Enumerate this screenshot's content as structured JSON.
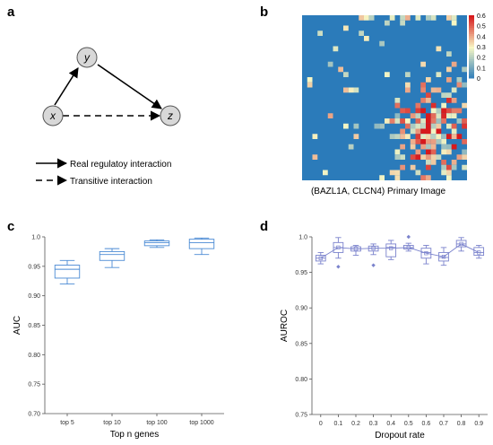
{
  "panels": {
    "a": {
      "letter": "a",
      "nodes": {
        "x": "x",
        "y": "y",
        "z": "z"
      },
      "legend": {
        "solid": "Real regulatoy interaction",
        "dashed": "Transitive interaction"
      }
    },
    "b": {
      "letter": "b",
      "caption": "(BAZL1A, CLCN4) Primary Image",
      "colorbar": {
        "ticks": [
          "0.6",
          "0.5",
          "0.4",
          "0.3",
          "0.2",
          "0.1",
          "0"
        ]
      }
    },
    "c": {
      "letter": "c"
    },
    "d": {
      "letter": "d"
    }
  },
  "chart_data": [
    {
      "type": "box",
      "panel": "c",
      "xlabel": "Top n genes",
      "ylabel": "AUC",
      "ylim": [
        0.7,
        1.0
      ],
      "yticks": [
        "0.70",
        "0.75",
        "0.80",
        "0.85",
        "0.90",
        "0.95",
        "1.0"
      ],
      "categories": [
        "top 5",
        "top 10",
        "top 100",
        "top 1000"
      ],
      "boxes": [
        {
          "min": 0.92,
          "q1": 0.93,
          "median": 0.945,
          "q3": 0.952,
          "max": 0.96
        },
        {
          "min": 0.948,
          "q1": 0.96,
          "median": 0.97,
          "q3": 0.975,
          "max": 0.98
        },
        {
          "min": 0.982,
          "q1": 0.985,
          "median": 0.99,
          "q3": 0.993,
          "max": 0.995
        },
        {
          "min": 0.97,
          "q1": 0.98,
          "median": 0.99,
          "q3": 0.996,
          "max": 0.998
        }
      ],
      "color": "#4a8ad4"
    },
    {
      "type": "box",
      "panel": "d",
      "xlabel": "Dropout rate",
      "ylabel": "AUROC",
      "ylim": [
        0.75,
        1.0
      ],
      "yticks": [
        "0.75",
        "0.80",
        "0.85",
        "0.90",
        "0.95",
        "1.0"
      ],
      "categories": [
        "0",
        "0.1",
        "0.2",
        "0.3",
        "0.4",
        "0.5",
        "0.6",
        "0.7",
        "0.8",
        "0.9"
      ],
      "boxes": [
        {
          "min": 0.962,
          "q1": 0.966,
          "median": 0.97,
          "q3": 0.974,
          "max": 0.978,
          "outliers": []
        },
        {
          "min": 0.97,
          "q1": 0.978,
          "median": 0.985,
          "q3": 0.992,
          "max": 0.999,
          "outliers": [
            0.958
          ]
        },
        {
          "min": 0.974,
          "q1": 0.98,
          "median": 0.983,
          "q3": 0.986,
          "max": 0.988,
          "outliers": []
        },
        {
          "min": 0.975,
          "q1": 0.98,
          "median": 0.984,
          "q3": 0.987,
          "max": 0.99,
          "outliers": [
            0.96
          ]
        },
        {
          "min": 0.968,
          "q1": 0.972,
          "median": 0.985,
          "q3": 0.99,
          "max": 0.995,
          "outliers": []
        },
        {
          "min": 0.98,
          "q1": 0.983,
          "median": 0.985,
          "q3": 0.988,
          "max": 0.991,
          "outliers": [
            1.0
          ]
        },
        {
          "min": 0.962,
          "q1": 0.97,
          "median": 0.978,
          "q3": 0.984,
          "max": 0.988,
          "outliers": []
        },
        {
          "min": 0.96,
          "q1": 0.966,
          "median": 0.971,
          "q3": 0.978,
          "max": 0.985,
          "outliers": []
        },
        {
          "min": 0.98,
          "q1": 0.986,
          "median": 0.99,
          "q3": 0.995,
          "max": 0.999,
          "outliers": []
        },
        {
          "min": 0.97,
          "q1": 0.974,
          "median": 0.978,
          "q3": 0.985,
          "max": 0.988,
          "outliers": []
        }
      ],
      "means": [
        0.97,
        0.985,
        0.983,
        0.984,
        0.984,
        0.985,
        0.977,
        0.972,
        0.99,
        0.978
      ],
      "color": "#7a82cc"
    }
  ],
  "heatmap_colors": {
    "low": "#2b7bba",
    "mid": "#f7f7c4",
    "high": "#d7191c"
  }
}
